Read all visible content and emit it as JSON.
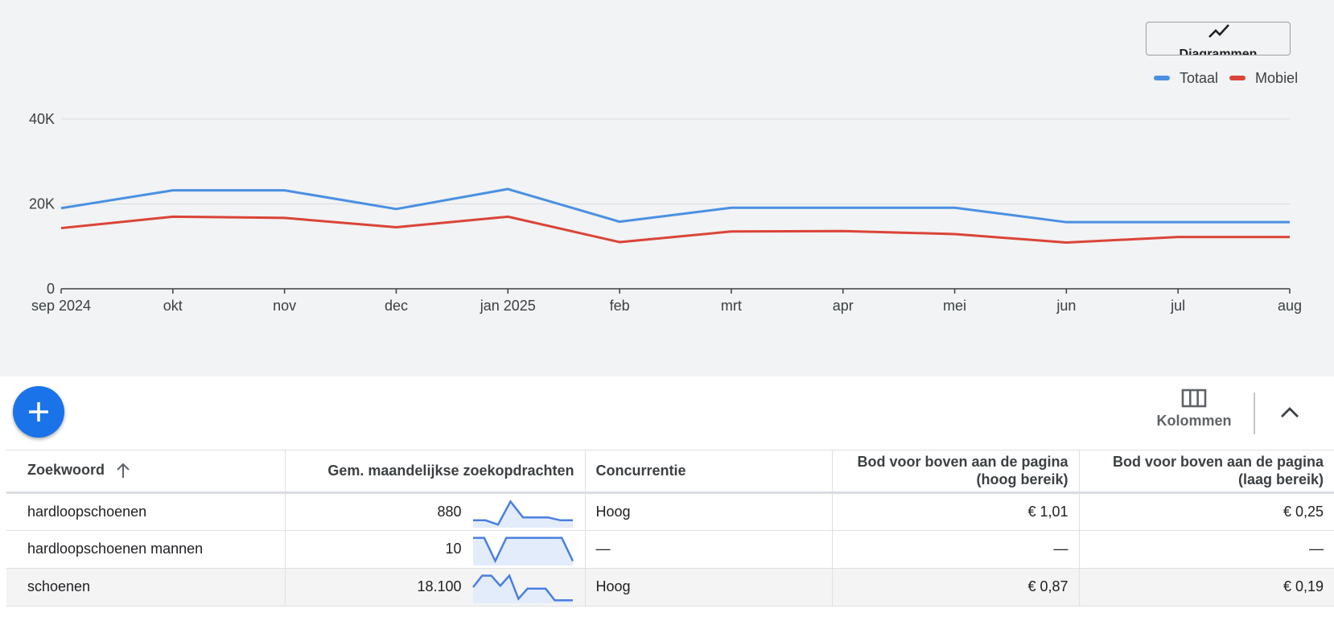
{
  "chart_header": {
    "diagram_button_label": "Diagrammen"
  },
  "legend": [
    {
      "name": "Totaal",
      "color": "#4a90e2"
    },
    {
      "name": "Mobiel",
      "color": "#db4437"
    }
  ],
  "chart_data": {
    "type": "line",
    "x": [
      "sep 2024",
      "okt",
      "nov",
      "dec",
      "jan 2025",
      "feb",
      "mrt",
      "apr",
      "mei",
      "jun",
      "jul",
      "aug"
    ],
    "yticks": [
      "0",
      "20K",
      "40K"
    ],
    "ylim": [
      0,
      40000
    ],
    "grid": true,
    "legend_position": "top-right",
    "series": [
      {
        "name": "Totaal",
        "color": "#4a90e2",
        "values": [
          19000,
          23200,
          23200,
          18800,
          23500,
          15800,
          19100,
          19100,
          19100,
          15700,
          15700,
          15700
        ]
      },
      {
        "name": "Mobiel",
        "color": "#db4437",
        "values": [
          14300,
          17000,
          16700,
          14500,
          17000,
          11000,
          13500,
          13600,
          12900,
          10900,
          12200,
          12200
        ]
      }
    ]
  },
  "toolbar": {
    "add_icon": "plus-icon",
    "columns_label": "Kolommen",
    "columns_icon": "view-column-icon",
    "collapse_icon": "chevron-up-icon"
  },
  "table": {
    "headers": {
      "keyword": "Zoekwoord",
      "searches": "Gem. maandelijkse zoekopdrachten",
      "competition": "Concurrentie",
      "bid_high_line1": "Bod voor boven aan de pagina",
      "bid_high_line2": "(hoog bereik)",
      "bid_low_line1": "Bod voor boven aan de pagina",
      "bid_low_line2": "(laag bereik)"
    },
    "rows": [
      {
        "keyword": "hardloopschoenen",
        "searches": "880",
        "competition": "Hoog",
        "bid_high": "€ 1,01",
        "bid_low": "€ 0,25",
        "trend": [
          0.2,
          0.2,
          0.05,
          0.85,
          0.3,
          0.3,
          0.3,
          0.2,
          0.2
        ]
      },
      {
        "keyword": "hardloopschoenen mannen",
        "searches": "10",
        "competition": "—",
        "bid_high": "—",
        "bid_low": "—",
        "trend": [
          0.9,
          0.9,
          0.1,
          0.9,
          0.9,
          0.9,
          0.9,
          0.9,
          0.9,
          0.1
        ]
      },
      {
        "keyword": "schoenen",
        "searches": "18.100",
        "competition": "Hoog",
        "bid_high": "€ 0,87",
        "bid_low": "€ 0,19",
        "trend": [
          0.5,
          0.9,
          0.9,
          0.55,
          0.9,
          0.1,
          0.45,
          0.45,
          0.45,
          0.05,
          0.05,
          0.05
        ]
      }
    ]
  }
}
